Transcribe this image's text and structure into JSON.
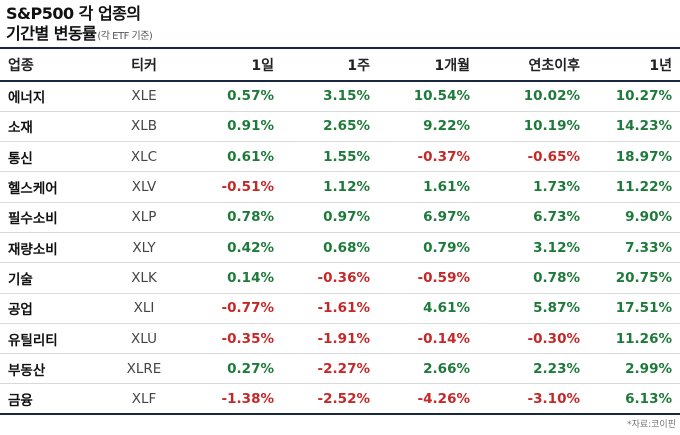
{
  "title": {
    "line1": "S&P500 각 업종의",
    "line2": "기간별 변동률",
    "note": "(각 ETF 기준)"
  },
  "table": {
    "headers": [
      "업종",
      "티커",
      "1일",
      "1주",
      "1개월",
      "연초이후",
      "1년"
    ],
    "rows": [
      {
        "sector": "에너지",
        "ticker": "XLE",
        "values": [
          "0.57%",
          "3.15%",
          "10.54%",
          "10.02%",
          "10.27%"
        ]
      },
      {
        "sector": "소재",
        "ticker": "XLB",
        "values": [
          "0.91%",
          "2.65%",
          "9.22%",
          "10.19%",
          "14.23%"
        ]
      },
      {
        "sector": "통신",
        "ticker": "XLC",
        "values": [
          "0.61%",
          "1.55%",
          "-0.37%",
          "-0.65%",
          "18.97%"
        ]
      },
      {
        "sector": "헬스케어",
        "ticker": "XLV",
        "values": [
          "-0.51%",
          "1.12%",
          "1.61%",
          "1.73%",
          "11.22%"
        ]
      },
      {
        "sector": "필수소비",
        "ticker": "XLP",
        "values": [
          "0.78%",
          "0.97%",
          "6.97%",
          "6.73%",
          "9.90%"
        ]
      },
      {
        "sector": "재량소비",
        "ticker": "XLY",
        "values": [
          "0.42%",
          "0.68%",
          "0.79%",
          "3.12%",
          "7.33%"
        ]
      },
      {
        "sector": "기술",
        "ticker": "XLK",
        "values": [
          "0.14%",
          "-0.36%",
          "-0.59%",
          "0.78%",
          "20.75%"
        ]
      },
      {
        "sector": "공업",
        "ticker": "XLI",
        "values": [
          "-0.77%",
          "-1.61%",
          "4.61%",
          "5.87%",
          "17.51%"
        ]
      },
      {
        "sector": "유틸리티",
        "ticker": "XLU",
        "values": [
          "-0.35%",
          "-1.91%",
          "-0.14%",
          "-0.30%",
          "11.26%"
        ]
      },
      {
        "sector": "부동산",
        "ticker": "XLRE",
        "values": [
          "0.27%",
          "-2.27%",
          "2.66%",
          "2.23%",
          "2.99%"
        ]
      },
      {
        "sector": "금융",
        "ticker": "XLF",
        "values": [
          "-1.38%",
          "-2.52%",
          "-4.26%",
          "-3.10%",
          "6.13%"
        ]
      }
    ]
  },
  "source": "*자료:코이핀",
  "colors": {
    "positive": "#1e7a3a",
    "negative": "#c62828",
    "rule": "#1a2740"
  }
}
